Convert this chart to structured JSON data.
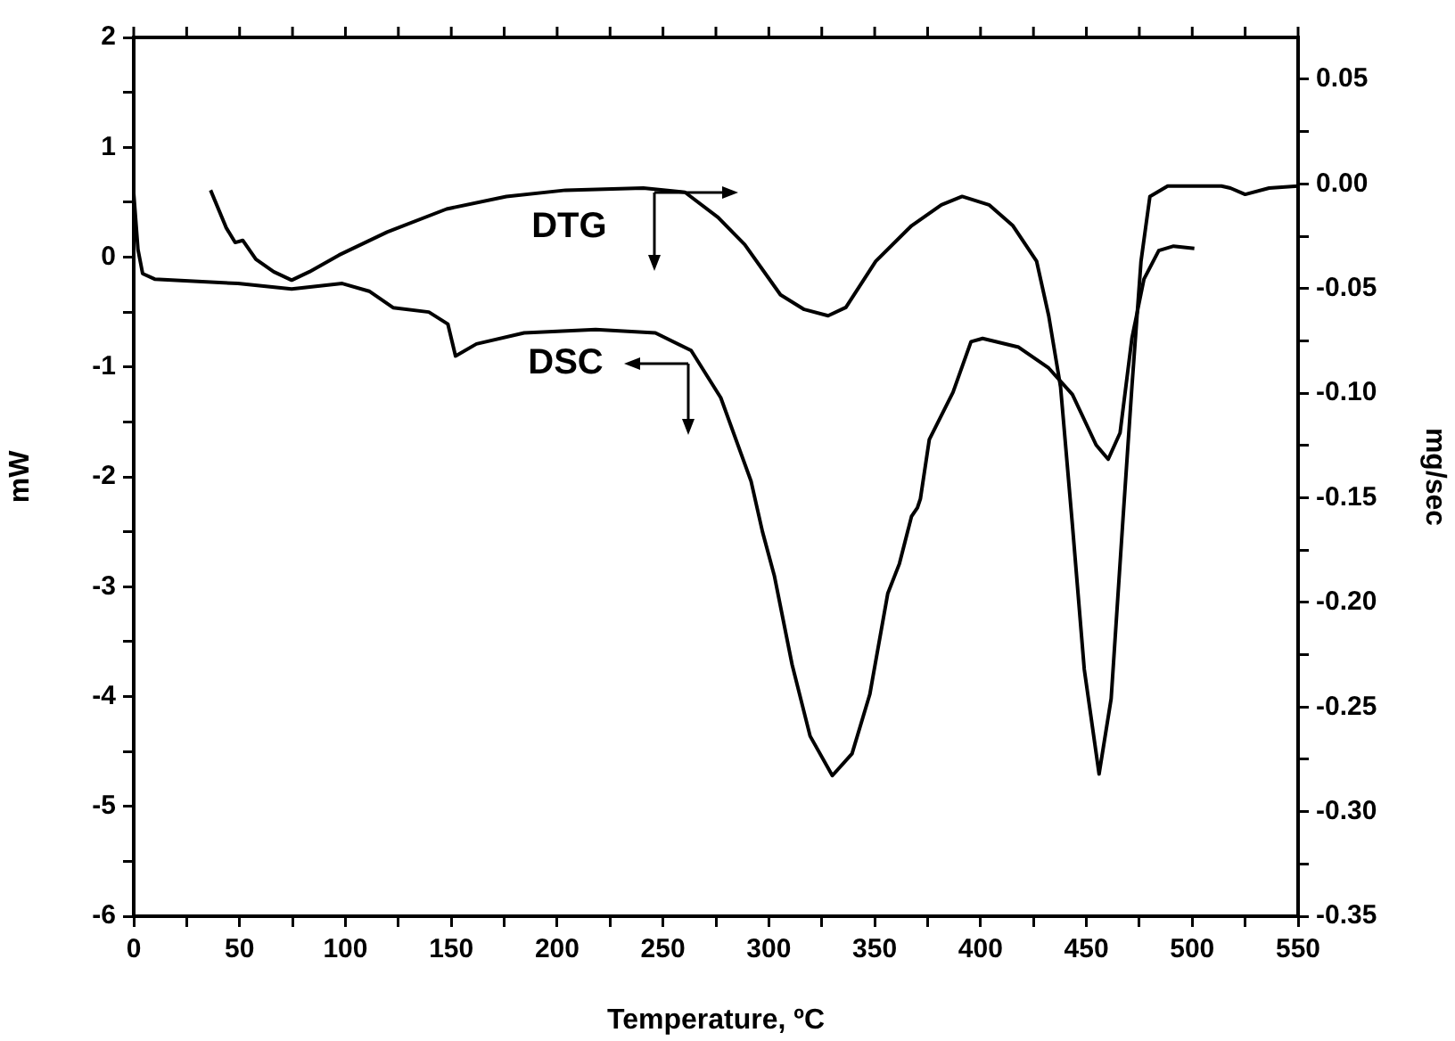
{
  "chart_data": {
    "type": "line",
    "xlabel": "Temperature, ºC",
    "ylabel": "mW",
    "y2label": "mg/sec",
    "xlim": [
      0,
      550
    ],
    "xticks": [
      0,
      {
        "value": 25,
        "label": null
      },
      50,
      {
        "value": 75,
        "label": null
      },
      100,
      {
        "value": 125,
        "label": null
      },
      150,
      {
        "value": 175,
        "label": null
      },
      200,
      {
        "value": 225,
        "label": null
      },
      250,
      {
        "value": 275,
        "label": null
      },
      300,
      {
        "value": 325,
        "label": null
      },
      350,
      {
        "value": 375,
        "label": null
      },
      400,
      {
        "value": 425,
        "label": null
      },
      450,
      {
        "value": 475,
        "label": null
      },
      500,
      {
        "value": 525,
        "label": null
      },
      550
    ],
    "ylim": [
      -6,
      2
    ],
    "yticks": [
      -6,
      {
        "value": -5.5,
        "label": null
      },
      -5,
      {
        "value": -4.5,
        "label": null
      },
      -4,
      {
        "value": -3.5,
        "label": null
      },
      -3,
      {
        "value": -2.5,
        "label": null
      },
      -2,
      {
        "value": -1.5,
        "label": null
      },
      -1,
      {
        "value": -0.5,
        "label": null
      },
      0,
      {
        "value": 0.5,
        "label": null
      },
      1,
      {
        "value": 1.5,
        "label": null
      },
      2
    ],
    "y2lim": [
      -0.35,
      0.07
    ],
    "y2ticks": [
      {
        "value": -0.35,
        "label": "-0.35"
      },
      {
        "value": -0.325,
        "label": null
      },
      {
        "value": -0.3,
        "label": "-0.30"
      },
      {
        "value": -0.275,
        "label": null
      },
      {
        "value": -0.25,
        "label": "-0.25"
      },
      {
        "value": -0.225,
        "label": null
      },
      {
        "value": -0.2,
        "label": "-0.20"
      },
      {
        "value": -0.175,
        "label": null
      },
      {
        "value": -0.15,
        "label": "-0.15"
      },
      {
        "value": -0.125,
        "label": null
      },
      {
        "value": -0.1,
        "label": "-0.10"
      },
      {
        "value": -0.075,
        "label": null
      },
      {
        "value": -0.05,
        "label": "-0.05"
      },
      {
        "value": -0.025,
        "label": null
      },
      {
        "value": 0,
        "label": "0.00"
      },
      {
        "value": 0.025,
        "label": null
      },
      {
        "value": 0.05,
        "label": "0.05"
      }
    ],
    "grid": false,
    "legend": false,
    "marker": "none",
    "line_style": "solid",
    "series": [
      {
        "color": "#000000",
        "x": [
          0,
          2,
          4.2,
          9.9,
          49.2,
          74.6,
          98.5,
          111.2,
          122.5,
          139.4,
          148.4,
          152,
          161.9,
          184.4,
          218.2,
          246.4,
          263.3,
          277.3,
          291.6,
          297,
          302.6,
          311,
          319.5,
          330,
          339.3,
          347.7,
          356.2,
          361.7,
          367.4,
          370.2,
          371.6,
          375.8,
          387,
          395.5,
          401,
          418,
          432.2,
          443.4,
          454.6,
          460.3,
          465.9,
          471.5,
          477.2,
          484.2,
          491.2,
          501
        ],
        "values": [
          0.58,
          0.07,
          -0.15,
          -0.2,
          -0.24,
          -0.29,
          -0.24,
          -0.31,
          -0.46,
          -0.5,
          -0.61,
          -0.9,
          -0.79,
          -0.69,
          -0.66,
          -0.69,
          -0.85,
          -1.28,
          -2.04,
          -2.5,
          -2.9,
          -3.71,
          -4.36,
          -4.72,
          -4.52,
          -3.98,
          -3.06,
          -2.79,
          -2.36,
          -2.28,
          -2.2,
          -1.66,
          -1.23,
          -0.77,
          -0.74,
          -0.82,
          -1.01,
          -1.25,
          -1.71,
          -1.84,
          -1.6,
          -0.74,
          -0.2,
          0.06,
          0.1,
          0.08
        ]
      },
      {
        "color": "#000000",
        "axis": "y2",
        "x": [
          36.3,
          43.7,
          47.9,
          51.5,
          57.7,
          66.1,
          74.6,
          83,
          97,
          119.7,
          147.8,
          176,
          204,
          240.7,
          260.4,
          276,
          288.6,
          305.5,
          316.7,
          328,
          336.4,
          350.5,
          367.4,
          381.5,
          391.3,
          404,
          415.3,
          426.5,
          432.2,
          437.8,
          443.4,
          449,
          456,
          461.7,
          467.3,
          471.5,
          475.8,
          480,
          488.4,
          513.8,
          518,
          525,
          536.3,
          550
        ],
        "values": [
          -0.003,
          -0.021,
          -0.028,
          -0.027,
          -0.036,
          -0.042,
          -0.046,
          -0.042,
          -0.034,
          -0.023,
          -0.012,
          -0.006,
          -0.003,
          -0.002,
          -0.004,
          -0.016,
          -0.029,
          -0.053,
          -0.06,
          -0.063,
          -0.059,
          -0.037,
          -0.02,
          -0.01,
          -0.006,
          -0.01,
          -0.02,
          -0.037,
          -0.063,
          -0.097,
          -0.163,
          -0.232,
          -0.282,
          -0.246,
          -0.16,
          -0.097,
          -0.037,
          -0.006,
          -0.001,
          -0.001,
          -0.002,
          -0.005,
          -0.002,
          -0.001
        ]
      }
    ],
    "annotations": [
      "DTG",
      "DSC"
    ]
  }
}
